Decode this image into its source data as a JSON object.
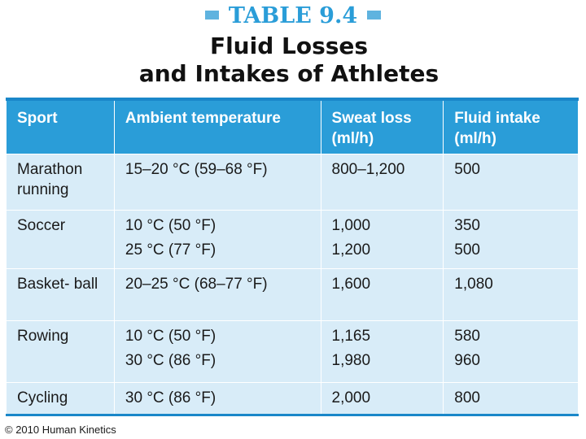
{
  "header": {
    "table_label": "TABLE 9.4",
    "title_line1": "Fluid Losses",
    "title_line2": "and Intakes of Athletes"
  },
  "table": {
    "columns": [
      "Sport",
      "Ambient temperature",
      "Sweat loss (ml/h)",
      "Fluid intake (ml/h)"
    ],
    "rows": [
      {
        "sport": "Marathon running",
        "temperature": [
          "15–20 °C (59–68 °F)"
        ],
        "sweat_loss": [
          "800–1,200"
        ],
        "fluid_intake": [
          "500"
        ]
      },
      {
        "sport": "Soccer",
        "temperature": [
          "10 °C (50 °F)",
          "25 °C (77 °F)"
        ],
        "sweat_loss": [
          "1,000",
          "1,200"
        ],
        "fluid_intake": [
          "350",
          "500"
        ]
      },
      {
        "sport": "Basket- ball",
        "temperature": [
          "20–25 °C (68–77 °F)"
        ],
        "sweat_loss": [
          "1,600"
        ],
        "fluid_intake": [
          "1,080"
        ]
      },
      {
        "sport": "Rowing",
        "temperature": [
          "10 °C (50 °F)",
          "30 °C (86 °F)"
        ],
        "sweat_loss": [
          "1,165",
          "1,980"
        ],
        "fluid_intake": [
          "580",
          "960"
        ]
      },
      {
        "sport": "Cycling",
        "temperature": [
          "30 °C (86 °F)"
        ],
        "sweat_loss": [
          "2,000"
        ],
        "fluid_intake": [
          "800"
        ]
      }
    ]
  },
  "footer": {
    "copyright": "© 2010 Human Kinetics"
  },
  "colors": {
    "accent": "#2a9dd8",
    "header_fill": "#2a9dd8",
    "body_fill": "#d8ecf8",
    "border": "#1a87c9"
  }
}
